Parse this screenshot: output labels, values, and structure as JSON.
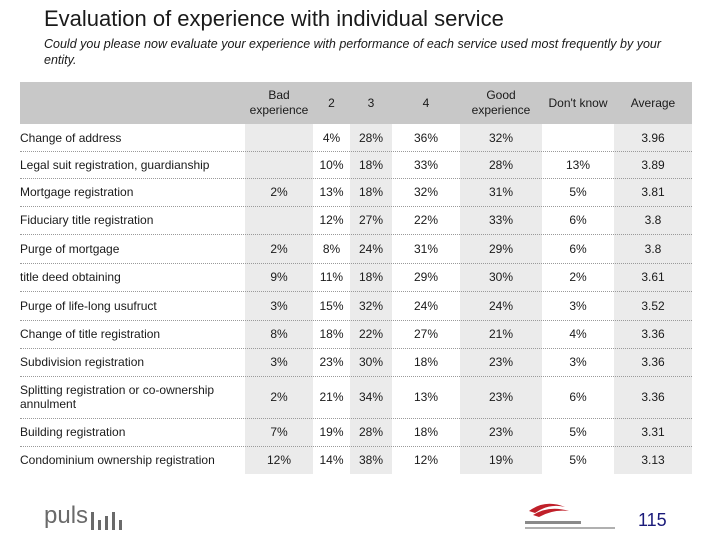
{
  "title": "Evaluation of experience with individual service",
  "subtitle": "Could you please now evaluate your experience with performance of each service used most frequently by your entity.",
  "columns": [
    "Bad experience",
    "2",
    "3",
    "4",
    "Good experience",
    "Don't know",
    "Average"
  ],
  "rows": [
    {
      "label": "Change of address",
      "values": [
        "",
        "4%",
        "28%",
        "36%",
        "32%",
        "",
        "3.96"
      ]
    },
    {
      "label": "Legal suit registration, guardianship",
      "values": [
        "",
        "10%",
        "18%",
        "33%",
        "28%",
        "13%",
        "3.89"
      ]
    },
    {
      "label": "Mortgage registration",
      "values": [
        "2%",
        "13%",
        "18%",
        "32%",
        "31%",
        "5%",
        "3.81"
      ]
    },
    {
      "label": "Fiduciary title registration",
      "values": [
        "",
        "12%",
        "27%",
        "22%",
        "33%",
        "6%",
        "3.8"
      ]
    },
    {
      "label": "Purge of mortgage",
      "values": [
        "2%",
        "8%",
        "24%",
        "31%",
        "29%",
        "6%",
        "3.8"
      ]
    },
    {
      "label": "title deed obtaining",
      "values": [
        "9%",
        "11%",
        "18%",
        "29%",
        "30%",
        "2%",
        "3.61"
      ]
    },
    {
      "label": "Purge of life-long usufruct",
      "values": [
        "3%",
        "15%",
        "32%",
        "24%",
        "24%",
        "3%",
        "3.52"
      ]
    },
    {
      "label": "Change of title registration",
      "values": [
        "8%",
        "18%",
        "22%",
        "27%",
        "21%",
        "4%",
        "3.36"
      ]
    },
    {
      "label": "Subdivision registration",
      "values": [
        "3%",
        "23%",
        "30%",
        "18%",
        "23%",
        "3%",
        "3.36"
      ]
    },
    {
      "label": "Splitting registration or co-ownership annulment",
      "values": [
        "2%",
        "21%",
        "34%",
        "13%",
        "23%",
        "6%",
        "3.36"
      ]
    },
    {
      "label": "Building registration",
      "values": [
        "7%",
        "19%",
        "28%",
        "18%",
        "23%",
        "5%",
        "3.31"
      ]
    },
    {
      "label": "Condominium ownership registration",
      "values": [
        "12%",
        "14%",
        "38%",
        "12%",
        "19%",
        "5%",
        "3.13"
      ]
    }
  ],
  "footer": {
    "brand": "puls",
    "page_number": "115"
  },
  "colors": {
    "header_band": "#c8c8c8",
    "column_band": "#ebebeb",
    "page_number": "#1a1a7a"
  }
}
